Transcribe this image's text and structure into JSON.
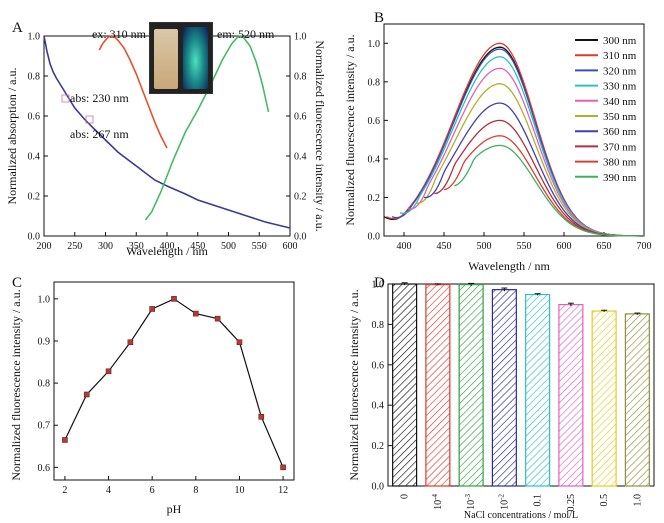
{
  "colors": {
    "absorption": "#3a3a9a",
    "excitation": "#e8502a",
    "emission": "#44bb66",
    "axis": "#111111",
    "red_marker": "#d0302a"
  },
  "panels": {
    "A": {
      "letter": "A",
      "ylabel_left": "Normalized absorption / a.u.",
      "ylabel_right": "Normalized fluorescence intensity / a.u.",
      "xlabel": "Wavelength / nm",
      "annotations": {
        "ex": "ex: 310 nm",
        "em": "em: 520 nm",
        "abs1": "abs: 230 nm",
        "abs2": "abs: 267 nm"
      },
      "inset_photo": "photo of vials (daylight and UV)"
    },
    "B": {
      "letter": "B",
      "ylabel": "Normalized fluorescence intensity / a.u.",
      "xlabel": "Wavelength / nm"
    },
    "C": {
      "letter": "C",
      "ylabel": "Normalized fluorescence intensity / a.u.",
      "xlabel": "pH"
    },
    "D": {
      "letter": "D",
      "ylabel": "Normalized fluorescence intensity / a.u.",
      "xlabel": "NaCl concentrations / mol/L"
    }
  },
  "chart_data": [
    {
      "panel": "A",
      "type": "line",
      "xlim": [
        200,
        600
      ],
      "ylim": [
        0,
        1.0
      ],
      "ylim_right": [
        0,
        1.0
      ],
      "xticks": [
        "200",
        "250",
        "300",
        "350",
        "400",
        "450",
        "500",
        "550",
        "600"
      ],
      "yticks": [
        "0.0",
        "0.2",
        "0.4",
        "0.6",
        "0.8",
        "1.0"
      ],
      "yticks_right": [
        "0.0",
        "0.2",
        "0.4",
        "0.6",
        "0.8",
        "1.0"
      ],
      "series": [
        {
          "key": "absorption",
          "x": [
            200,
            205,
            210,
            215,
            220,
            230,
            240,
            250,
            267,
            280,
            300,
            320,
            350,
            380,
            400,
            430,
            450,
            480,
            500,
            530,
            560,
            600
          ],
          "y": [
            1.0,
            0.92,
            0.86,
            0.82,
            0.79,
            0.74,
            0.69,
            0.64,
            0.58,
            0.54,
            0.48,
            0.42,
            0.35,
            0.28,
            0.25,
            0.21,
            0.18,
            0.15,
            0.13,
            0.1,
            0.07,
            0.04
          ]
        },
        {
          "key": "excitation",
          "x": [
            290,
            295,
            300,
            305,
            310,
            315,
            320,
            330,
            340,
            350,
            360,
            370,
            380,
            390,
            400
          ],
          "y": [
            0.93,
            0.96,
            0.98,
            0.995,
            1.0,
            0.995,
            0.98,
            0.94,
            0.88,
            0.81,
            0.73,
            0.65,
            0.57,
            0.5,
            0.44
          ]
        },
        {
          "key": "emission",
          "x": [
            365,
            375,
            390,
            410,
            430,
            450,
            470,
            490,
            505,
            515,
            520,
            525,
            535,
            545,
            555,
            565
          ],
          "y": [
            0.08,
            0.12,
            0.22,
            0.38,
            0.52,
            0.63,
            0.75,
            0.88,
            0.96,
            0.995,
            1.0,
            0.99,
            0.95,
            0.87,
            0.76,
            0.62
          ]
        }
      ]
    },
    {
      "panel": "B",
      "type": "line",
      "xlim": [
        375,
        700
      ],
      "ylim": [
        0,
        1.1
      ],
      "xticks": [
        "400",
        "450",
        "500",
        "550",
        "600",
        "650",
        "700"
      ],
      "yticks": [
        "0.0",
        "0.2",
        "0.4",
        "0.6",
        "0.8",
        "1.0"
      ],
      "x_peak": 520,
      "series": [
        {
          "name": "300 nm",
          "color": "#111111",
          "peak": 0.98,
          "start_x": 375,
          "start_y": 0.1
        },
        {
          "name": "310 nm",
          "color": "#e03a2a",
          "peak": 1.0,
          "start_x": 378,
          "start_y": 0.1
        },
        {
          "name": "320 nm",
          "color": "#3a50c0",
          "peak": 0.97,
          "start_x": 385,
          "start_y": 0.1
        },
        {
          "name": "330 nm",
          "color": "#30c0c0",
          "peak": 0.93,
          "start_x": 395,
          "start_y": 0.12
        },
        {
          "name": "340 nm",
          "color": "#e060c0",
          "peak": 0.87,
          "start_x": 405,
          "start_y": 0.14
        },
        {
          "name": "350 nm",
          "color": "#b0b030",
          "peak": 0.79,
          "start_x": 415,
          "start_y": 0.17
        },
        {
          "name": "360 nm",
          "color": "#4040b0",
          "peak": 0.69,
          "start_x": 425,
          "start_y": 0.2
        },
        {
          "name": "370 nm",
          "color": "#b03040",
          "peak": 0.6,
          "start_x": 438,
          "start_y": 0.22
        },
        {
          "name": "380 nm",
          "color": "#d84030",
          "peak": 0.52,
          "start_x": 450,
          "start_y": 0.24
        },
        {
          "name": "390 nm",
          "color": "#40b060",
          "peak": 0.47,
          "start_x": 463,
          "start_y": 0.26
        }
      ]
    },
    {
      "panel": "C",
      "type": "line",
      "xlim": [
        1.5,
        12.5
      ],
      "ylim": [
        0.57,
        1.04
      ],
      "xticks": [
        "2",
        "4",
        "6",
        "8",
        "10",
        "12"
      ],
      "yticks": [
        "0.6",
        "0.7",
        "0.8",
        "0.9",
        "1.0"
      ],
      "x": [
        2,
        3,
        4,
        5,
        6,
        7,
        8,
        9,
        10,
        11,
        12
      ],
      "y": [
        0.665,
        0.773,
        0.828,
        0.897,
        0.976,
        1.0,
        0.965,
        0.953,
        0.897,
        0.72,
        0.6
      ]
    },
    {
      "panel": "D",
      "type": "bar",
      "ylim": [
        0,
        1.0
      ],
      "yticks": [
        "0.0",
        "0.2",
        "0.4",
        "0.6",
        "0.8",
        "1.0"
      ],
      "categories": [
        "0",
        "10",
        "10",
        "10",
        "0.1",
        "0.25",
        "0.5",
        "1.0"
      ],
      "category_superscripts": [
        "",
        "-4",
        "-3",
        "-2",
        "",
        "",
        "",
        ""
      ],
      "values": [
        1.0,
        0.997,
        0.997,
        0.972,
        0.948,
        0.898,
        0.866,
        0.852
      ],
      "errors": [
        0.006,
        0.004,
        0.006,
        0.008,
        0.004,
        0.007,
        0.004,
        0.004
      ],
      "bar_colors": [
        "#111111",
        "#e03a2a",
        "#30a040",
        "#2a2aa0",
        "#30c0c0",
        "#e060c0",
        "#e0d020",
        "#909040"
      ]
    }
  ]
}
